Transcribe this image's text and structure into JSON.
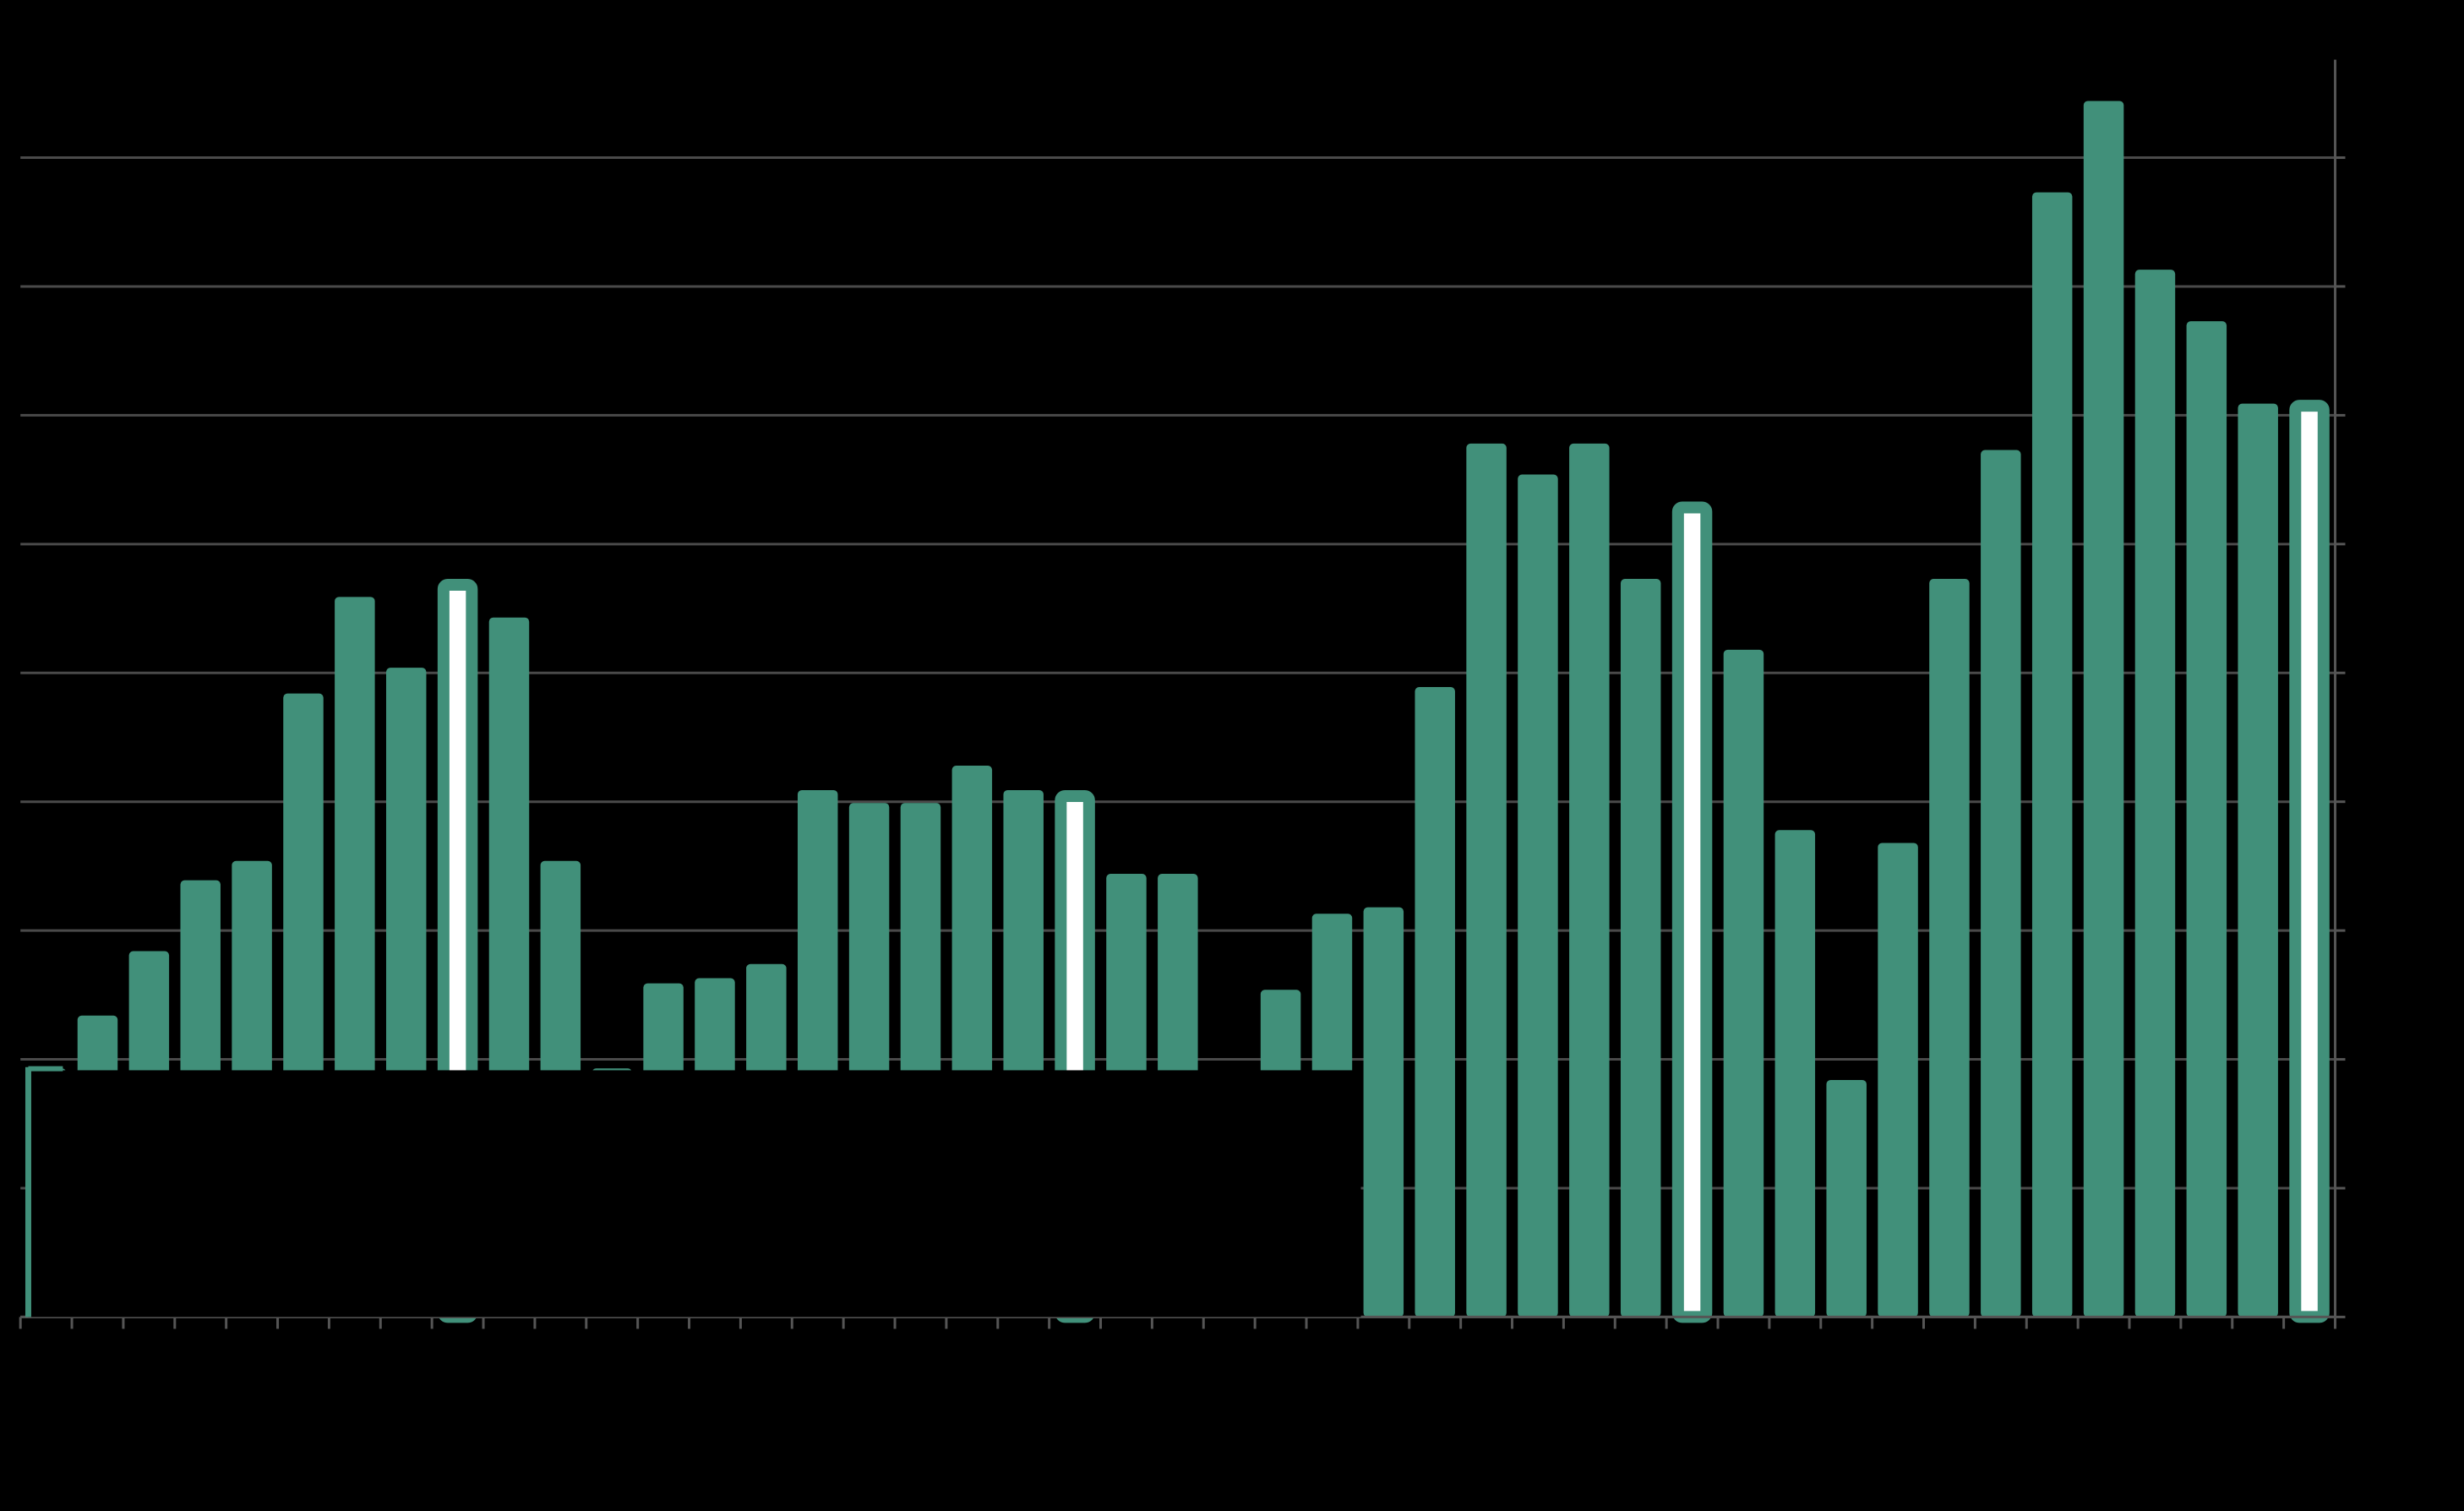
{
  "chart_data": {
    "type": "bar",
    "categories": [
      null,
      null,
      null,
      null,
      null,
      null,
      null,
      null,
      null,
      null,
      null,
      null,
      null,
      null,
      null,
      null,
      null,
      null,
      null,
      null,
      null,
      null,
      null,
      null,
      null,
      null,
      null,
      null,
      null,
      null,
      null,
      null,
      null,
      null,
      null,
      null,
      null,
      null,
      null,
      null,
      null,
      null,
      null,
      null,
      null
    ],
    "values": [
      1.93,
      2.34,
      2.84,
      3.39,
      3.54,
      4.84,
      5.59,
      5.04,
      5.73,
      5.43,
      3.54,
      1.93,
      2.59,
      2.63,
      2.74,
      4.09,
      3.99,
      3.99,
      4.28,
      4.09,
      4.09,
      3.44,
      3.44,
      null,
      2.54,
      3.13,
      3.18,
      4.89,
      6.78,
      6.54,
      6.78,
      5.73,
      6.33,
      5.18,
      3.78,
      1.84,
      3.68,
      5.73,
      6.73,
      8.73,
      9.44,
      8.13,
      7.73,
      7.09,
      7.12
    ],
    "color": "#41907a",
    "highlight": [
      8,
      20,
      32,
      44
    ],
    "ylim": [
      0,
      9.76
    ],
    "yticks": [
      0,
      1,
      2,
      3,
      4,
      5,
      6,
      7,
      8,
      9
    ],
    "grid": true
  }
}
